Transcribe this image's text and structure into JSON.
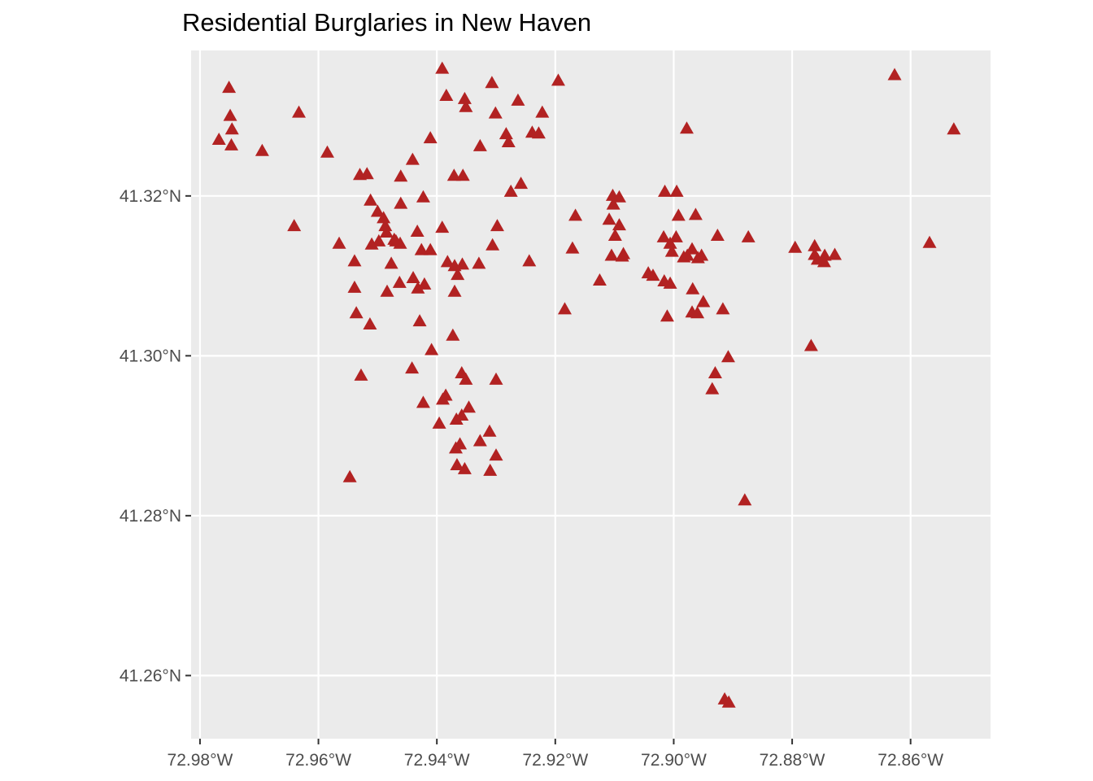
{
  "chart_data": {
    "type": "scatter",
    "title": "Residential Burglaries in New Haven",
    "xlabel": "",
    "ylabel": "",
    "marker": "triangle",
    "colors": {
      "panel": "#ebebeb",
      "grid": "#ffffff",
      "point": "#b22222",
      "tick_text": "#4d4d4d"
    },
    "xlim": [
      -72.9815,
      -72.8465
    ],
    "ylim": [
      41.2521,
      41.3382
    ],
    "x_ticks": [
      {
        "value": -72.98,
        "label": "72.98°W"
      },
      {
        "value": -72.96,
        "label": "72.96°W"
      },
      {
        "value": -72.94,
        "label": "72.94°W"
      },
      {
        "value": -72.92,
        "label": "72.92°W"
      },
      {
        "value": -72.9,
        "label": "72.90°W"
      },
      {
        "value": -72.88,
        "label": "72.88°W"
      },
      {
        "value": -72.86,
        "label": "72.86°W"
      }
    ],
    "y_ticks": [
      {
        "value": 41.26,
        "label": "41.26°N"
      },
      {
        "value": 41.28,
        "label": "41.28°N"
      },
      {
        "value": 41.3,
        "label": "41.30°N"
      },
      {
        "value": 41.32,
        "label": "41.32°N"
      }
    ],
    "points": [
      [
        -72.9391,
        41.3359
      ],
      [
        -72.9751,
        41.3335
      ],
      [
        -72.9307,
        41.3341
      ],
      [
        -72.9195,
        41.3344
      ],
      [
        -72.8627,
        41.3351
      ],
      [
        -72.9384,
        41.3325
      ],
      [
        -72.9353,
        41.3321
      ],
      [
        -72.9351,
        41.3311
      ],
      [
        -72.9263,
        41.3319
      ],
      [
        -72.9749,
        41.33
      ],
      [
        -72.9633,
        41.3304
      ],
      [
        -72.9301,
        41.3303
      ],
      [
        -72.9222,
        41.3304
      ],
      [
        -72.9746,
        41.3283
      ],
      [
        -72.9283,
        41.3277
      ],
      [
        -72.9239,
        41.3279
      ],
      [
        -72.9228,
        41.3278
      ],
      [
        -72.9279,
        41.3267
      ],
      [
        -72.9411,
        41.3272
      ],
      [
        -72.8978,
        41.3284
      ],
      [
        -72.8527,
        41.3283
      ],
      [
        -72.9768,
        41.327
      ],
      [
        -72.9747,
        41.3263
      ],
      [
        -72.9695,
        41.3256
      ],
      [
        -72.9585,
        41.3254
      ],
      [
        -72.9327,
        41.3262
      ],
      [
        -72.9441,
        41.3245
      ],
      [
        -72.953,
        41.3226
      ],
      [
        -72.9518,
        41.3227
      ],
      [
        -72.9371,
        41.3225
      ],
      [
        -72.9356,
        41.3225
      ],
      [
        -72.9461,
        41.3224
      ],
      [
        -72.9258,
        41.3215
      ],
      [
        -72.9275,
        41.3205
      ],
      [
        -72.9015,
        41.3205
      ],
      [
        -72.8995,
        41.3205
      ],
      [
        -72.9103,
        41.32
      ],
      [
        -72.9092,
        41.3198
      ],
      [
        -72.9102,
        41.3189
      ],
      [
        -72.9512,
        41.3194
      ],
      [
        -72.9423,
        41.3198
      ],
      [
        -72.9461,
        41.319
      ],
      [
        -72.95,
        41.318
      ],
      [
        -72.949,
        41.3172
      ],
      [
        -72.8992,
        41.3175
      ],
      [
        -72.8963,
        41.3176
      ],
      [
        -72.9166,
        41.3175
      ],
      [
        -72.9109,
        41.317
      ],
      [
        -72.9487,
        41.3162
      ],
      [
        -72.9391,
        41.316
      ],
      [
        -72.9298,
        41.3162
      ],
      [
        -72.9092,
        41.3163
      ],
      [
        -72.9641,
        41.3162
      ],
      [
        -72.9485,
        41.3154
      ],
      [
        -72.9433,
        41.3155
      ],
      [
        -72.8926,
        41.315
      ],
      [
        -72.8874,
        41.3148
      ],
      [
        -72.9017,
        41.3148
      ],
      [
        -72.8996,
        41.3148
      ],
      [
        -72.9099,
        41.315
      ],
      [
        -72.9472,
        41.3145
      ],
      [
        -72.9469,
        41.3143
      ],
      [
        -72.9498,
        41.3143
      ],
      [
        -72.951,
        41.3139
      ],
      [
        -72.9462,
        41.314
      ],
      [
        -72.9006,
        41.314
      ],
      [
        -72.9565,
        41.314
      ],
      [
        -72.9306,
        41.3138
      ],
      [
        -72.9426,
        41.3132
      ],
      [
        -72.9003,
        41.313
      ],
      [
        -72.9171,
        41.3134
      ],
      [
        -72.8969,
        41.3133
      ],
      [
        -72.8795,
        41.3135
      ],
      [
        -72.8762,
        41.3137
      ],
      [
        -72.9411,
        41.3132
      ],
      [
        -72.9105,
        41.3125
      ],
      [
        -72.9085,
        41.3127
      ],
      [
        -72.9087,
        41.3124
      ],
      [
        -72.8983,
        41.3123
      ],
      [
        -72.8977,
        41.3125
      ],
      [
        -72.8953,
        41.3125
      ],
      [
        -72.8762,
        41.3126
      ],
      [
        -72.8745,
        41.3125
      ],
      [
        -72.8728,
        41.3126
      ],
      [
        -72.8959,
        41.3122
      ],
      [
        -72.8757,
        41.312
      ],
      [
        -72.8746,
        41.3117
      ],
      [
        -72.9539,
        41.3118
      ],
      [
        -72.9382,
        41.3117
      ],
      [
        -72.9244,
        41.3118
      ],
      [
        -72.9477,
        41.3115
      ],
      [
        -72.937,
        41.3112
      ],
      [
        -72.9357,
        41.3114
      ],
      [
        -72.9329,
        41.3115
      ],
      [
        -72.9365,
        41.3101
      ],
      [
        -72.9035,
        41.31
      ],
      [
        -72.9043,
        41.3103
      ],
      [
        -72.9125,
        41.3094
      ],
      [
        -72.944,
        41.3097
      ],
      [
        -72.9463,
        41.3091
      ],
      [
        -72.9016,
        41.3093
      ],
      [
        -72.9006,
        41.309
      ],
      [
        -72.9432,
        41.3084
      ],
      [
        -72.9421,
        41.3089
      ],
      [
        -72.9539,
        41.3085
      ],
      [
        -72.9484,
        41.308
      ],
      [
        -72.937,
        41.308
      ],
      [
        -72.8968,
        41.3083
      ],
      [
        -72.895,
        41.3067
      ],
      [
        -72.9184,
        41.3058
      ],
      [
        -72.8917,
        41.3058
      ],
      [
        -72.8969,
        41.3054
      ],
      [
        -72.896,
        41.3053
      ],
      [
        -72.9536,
        41.3053
      ],
      [
        -72.9011,
        41.3049
      ],
      [
        -72.9513,
        41.3039
      ],
      [
        -72.9429,
        41.3043
      ],
      [
        -72.9373,
        41.3025
      ],
      [
        -72.9409,
        41.3007
      ],
      [
        -72.8768,
        41.3012
      ],
      [
        -72.8908,
        41.2998
      ],
      [
        -72.9442,
        41.2984
      ],
      [
        -72.9358,
        41.2978
      ],
      [
        -72.9528,
        41.2975
      ],
      [
        -72.893,
        41.2978
      ],
      [
        -72.9351,
        41.297
      ],
      [
        -72.93,
        41.297
      ],
      [
        -72.8935,
        41.2958
      ],
      [
        -72.9385,
        41.295
      ],
      [
        -72.939,
        41.2945
      ],
      [
        -72.9423,
        41.2941
      ],
      [
        -72.9346,
        41.2935
      ],
      [
        -72.9358,
        41.2925
      ],
      [
        -72.9367,
        41.292
      ],
      [
        -72.9396,
        41.2915
      ],
      [
        -72.9311,
        41.2905
      ],
      [
        -72.9327,
        41.2893
      ],
      [
        -72.9361,
        41.2889
      ],
      [
        -72.9368,
        41.2884
      ],
      [
        -72.93,
        41.2875
      ],
      [
        -72.9366,
        41.2863
      ],
      [
        -72.9353,
        41.2858
      ],
      [
        -72.931,
        41.2856
      ],
      [
        -72.9547,
        41.2848
      ],
      [
        -72.888,
        41.2819
      ],
      [
        -72.8914,
        41.257
      ],
      [
        -72.8907,
        41.2566
      ],
      [
        -72.8568,
        41.3141
      ]
    ]
  }
}
